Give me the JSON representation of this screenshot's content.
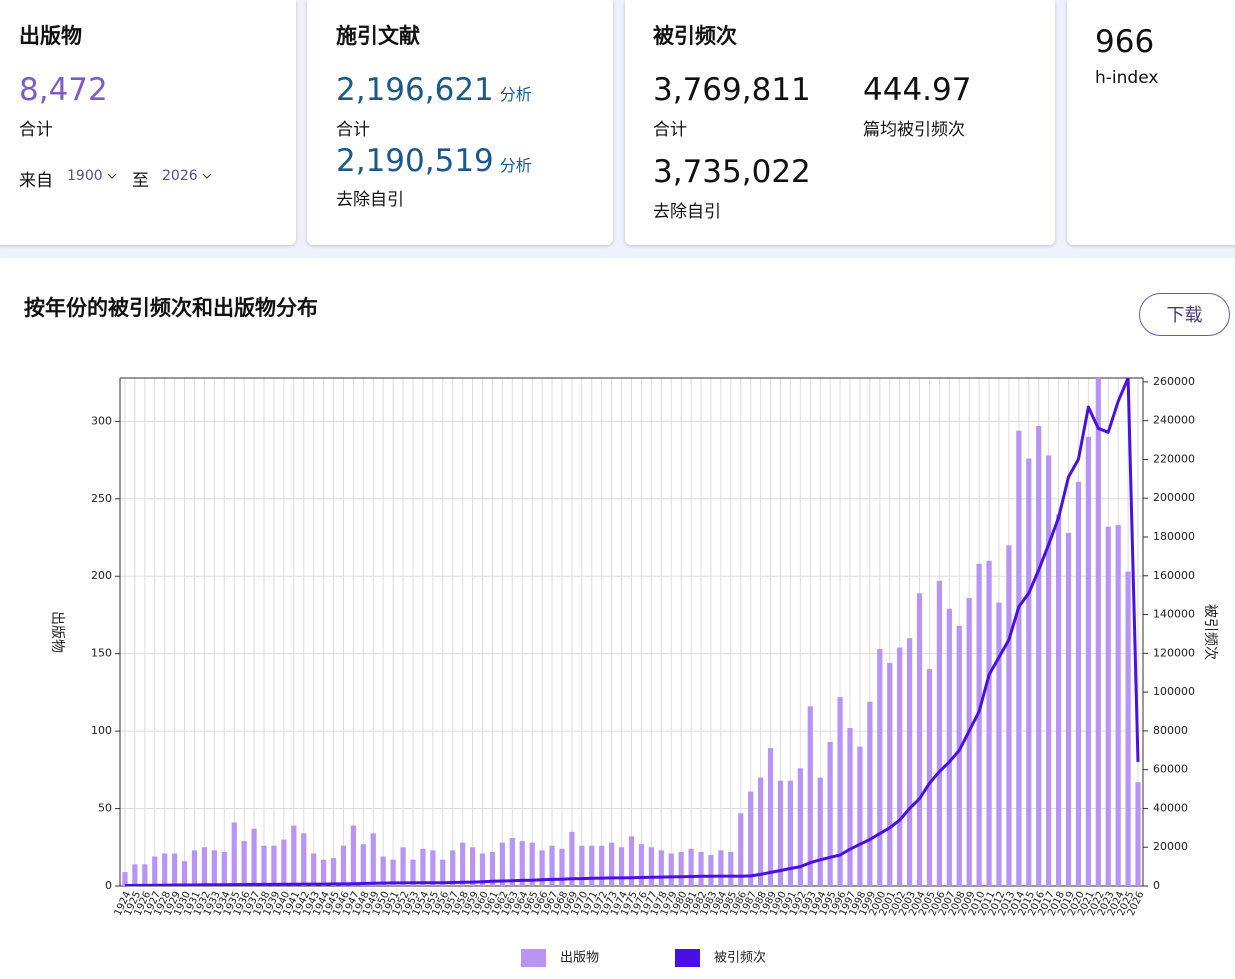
{
  "publications": {
    "title": "出版物",
    "value": "8,472",
    "value_label": "合计",
    "from_label": "来自",
    "from": "1900",
    "to_label": "至",
    "to": "2026"
  },
  "citing": {
    "title": "施引文献",
    "total": "2,196,621",
    "total_link": "分析",
    "total_label": "合计",
    "excl": "2,190,519",
    "excl_link": "分析",
    "excl_label": "去除自引"
  },
  "times_cited": {
    "title": "被引频次",
    "total": "3,769,811",
    "total_label": "合计",
    "average": "444.97",
    "average_label": "篇均被引频次",
    "excl": "3,735,022",
    "excl_label": "去除自引"
  },
  "h_index": {
    "value": "966",
    "label": "h-index"
  },
  "download": "下载",
  "chart_data": {
    "type": "combo",
    "title": "按年份的被引频次和出版物分布",
    "ylabel": "出版物",
    "y2label": "被引频次",
    "grid": true,
    "categories": [
      "1924",
      "1925",
      "1926",
      "1927",
      "1928",
      "1929",
      "1930",
      "1931",
      "1932",
      "1933",
      "1934",
      "1935",
      "1936",
      "1937",
      "1938",
      "1939",
      "1940",
      "1941",
      "1942",
      "1943",
      "1944",
      "1945",
      "1946",
      "1947",
      "1948",
      "1949",
      "1950",
      "1951",
      "1952",
      "1953",
      "1954",
      "1955",
      "1956",
      "1957",
      "1958",
      "1959",
      "1960",
      "1961",
      "1962",
      "1963",
      "1964",
      "1965",
      "1966",
      "1967",
      "1968",
      "1969",
      "1970",
      "1971",
      "1972",
      "1973",
      "1974",
      "1975",
      "1976",
      "1977",
      "1978",
      "1979",
      "1980",
      "1981",
      "1982",
      "1983",
      "1984",
      "1985",
      "1986",
      "1987",
      "1988",
      "1989",
      "1990",
      "1991",
      "1992",
      "1993",
      "1994",
      "1995",
      "1996",
      "1997",
      "1998",
      "1999",
      "2000",
      "2001",
      "2002",
      "2003",
      "2004",
      "2005",
      "2006",
      "2007",
      "2008",
      "2009",
      "2010",
      "2011",
      "2012",
      "2013",
      "2014",
      "2015",
      "2016",
      "2017",
      "2018",
      "2019",
      "2020",
      "2021",
      "2022",
      "2023",
      "2024",
      "2025",
      "2026"
    ],
    "series": [
      {
        "name": "出版物",
        "type": "bar",
        "color": "#b794f6",
        "values": [
          9,
          14,
          14,
          19,
          21,
          21,
          16,
          23,
          25,
          23,
          22,
          41,
          29,
          37,
          26,
          26,
          30,
          39,
          34,
          21,
          17,
          18,
          26,
          39,
          27,
          34,
          19,
          17,
          25,
          17,
          24,
          23,
          17,
          23,
          28,
          25,
          21,
          22,
          28,
          31,
          29,
          28,
          23,
          26,
          24,
          35,
          26,
          26,
          26,
          28,
          25,
          32,
          27,
          25,
          23,
          21,
          22,
          24,
          22,
          20,
          23,
          22,
          47,
          61,
          70,
          89,
          68,
          68,
          76,
          116,
          70,
          93,
          122,
          102,
          90,
          119,
          153,
          144,
          154,
          160,
          189,
          140,
          197,
          179,
          168,
          186,
          208,
          210,
          183,
          220,
          294,
          276,
          297,
          278,
          240,
          228,
          261,
          290,
          330,
          232,
          233,
          203,
          67
        ]
      },
      {
        "name": "被引频次",
        "type": "line",
        "axis": "y2",
        "color": "#4a0ee6",
        "values": [
          200,
          300,
          300,
          400,
          400,
          500,
          500,
          500,
          600,
          600,
          600,
          700,
          700,
          800,
          800,
          800,
          900,
          900,
          1000,
          1000,
          1000,
          1100,
          1100,
          1200,
          1300,
          1400,
          1500,
          1600,
          1600,
          1700,
          1700,
          1700,
          1700,
          1800,
          1900,
          2000,
          2200,
          2400,
          2600,
          2700,
          2900,
          3000,
          3200,
          3400,
          3500,
          3700,
          3800,
          4000,
          4100,
          4200,
          4200,
          4300,
          4400,
          4500,
          4600,
          4700,
          4800,
          4900,
          5000,
          5000,
          5100,
          5100,
          5000,
          5200,
          6000,
          7000,
          8000,
          9000,
          10000,
          12000,
          13500,
          14800,
          16000,
          19000,
          21500,
          24000,
          27000,
          30000,
          34000,
          40000,
          45000,
          53000,
          59000,
          64000,
          70000,
          80000,
          90000,
          109000,
          118000,
          127000,
          144000,
          151000,
          163000,
          176000,
          190000,
          211000,
          220000,
          247000,
          236000,
          234000,
          250000,
          262000,
          64000
        ]
      }
    ],
    "ylim": [
      0,
      328
    ],
    "yticks": [
      0,
      50,
      100,
      150,
      200,
      250,
      300
    ],
    "y2lim": [
      0,
      262000
    ],
    "y2ticks": [
      0,
      20000,
      40000,
      60000,
      80000,
      100000,
      120000,
      140000,
      160000,
      180000,
      200000,
      220000,
      240000,
      260000
    ]
  }
}
